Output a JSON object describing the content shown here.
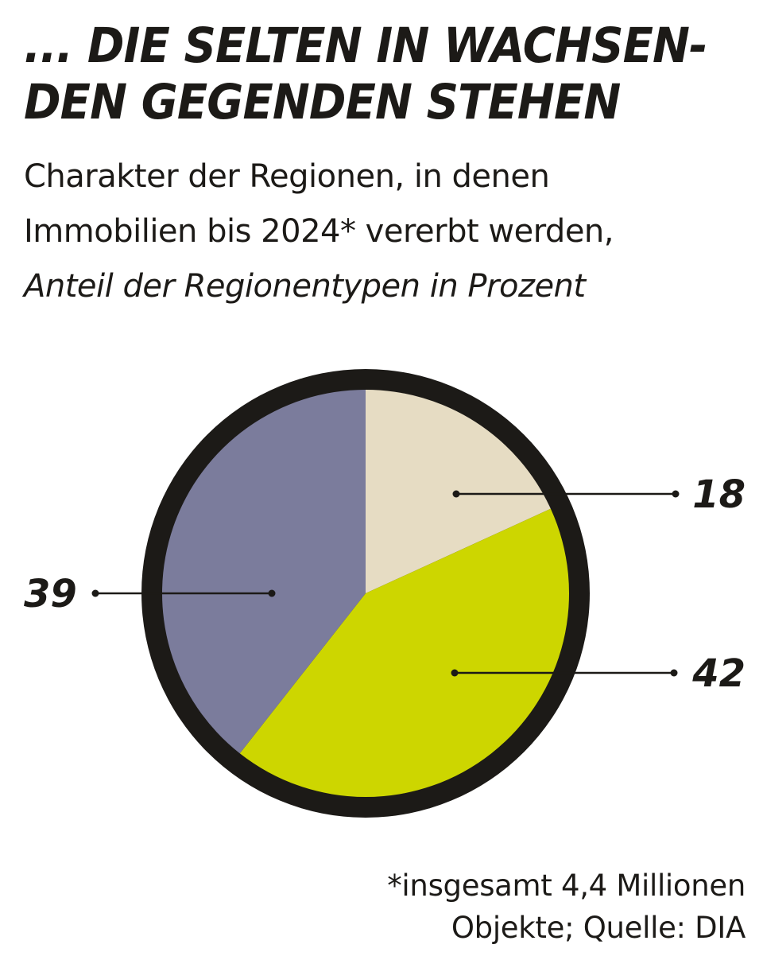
{
  "title_lines": [
    "... DIE SELTEN IN WACHSEN-",
    "DEN GEGENDEN STEHEN"
  ],
  "subtitle_lines": [
    "Charakter der Regionen, in denen",
    "Immobilien bis 2024* vererbt werden,"
  ],
  "subtitle_italic": "Anteil der Regionentypen in Prozent",
  "footnote_lines": [
    "*insgesamt 4,4 Millionen",
    "Objekte; Quelle: DIA"
  ],
  "colors": {
    "ring": "#1c1a17",
    "slice_18": "#e6dcc3",
    "slice_42": "#cdd600",
    "slice_39": "#7b7c9c",
    "text": "#1c1a17"
  },
  "chart_data": {
    "type": "pie",
    "title": "... DIE SELTEN IN WACHSENDEN GEGENDEN STEHEN",
    "unit": "Prozent",
    "values": [
      18,
      42,
      39
    ],
    "labels": [
      "18",
      "42",
      "39"
    ],
    "start_angle_deg": 0,
    "direction": "clockwise"
  }
}
